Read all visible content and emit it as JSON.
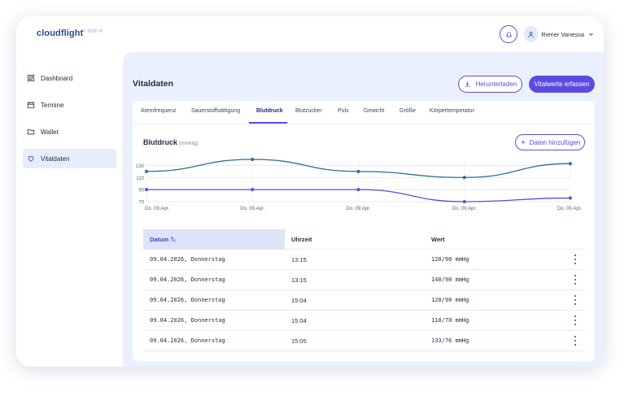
{
  "app": {
    "logo": "cloudflight",
    "logo_sub": "⚭ one-4",
    "user_name": "Riener Vanessa"
  },
  "sidebar": {
    "items": [
      {
        "label": "Dashboard",
        "icon": "dashboard-icon",
        "active": false
      },
      {
        "label": "Termine",
        "icon": "calendar-icon",
        "active": false
      },
      {
        "label": "Wallet",
        "icon": "folder-icon",
        "active": false
      },
      {
        "label": "Vitaldaten",
        "icon": "heart-icon",
        "active": true
      }
    ]
  },
  "page": {
    "title": "Vitaldaten",
    "download_label": "Herunterladen",
    "record_label": "Vitalwerte erfassen"
  },
  "tabs": [
    {
      "label": "Atemfrequenz",
      "active": false
    },
    {
      "label": "Sauerstoffsättigung",
      "active": false
    },
    {
      "label": "Blutdruck",
      "active": true
    },
    {
      "label": "Blutzucker",
      "active": false
    },
    {
      "label": "Puls",
      "active": false
    },
    {
      "label": "Gewicht",
      "active": false
    },
    {
      "label": "Größe",
      "active": false
    },
    {
      "label": "Körpertemperatur",
      "active": false
    }
  ],
  "chart_section": {
    "title": "Blutdruck",
    "unit": "(mmHg)",
    "add_label": "Daten hinzufügen"
  },
  "chart_data": {
    "type": "line",
    "x": [
      "Do. 09.Apr.",
      "Do. 09.Apr.",
      "Do. 09.Apr.",
      "Do. 09.Apr.",
      "Do. 09.Apr."
    ],
    "y_ticks": [
      70,
      90,
      110,
      130
    ],
    "ylim": [
      70,
      140
    ],
    "series": [
      {
        "values": [
          120,
          140,
          120,
          110,
          133
        ],
        "color": "#2f6e95"
      },
      {
        "values": [
          90,
          90,
          90,
          70,
          76
        ],
        "color": "#5b4ce0"
      }
    ]
  },
  "table": {
    "headers": {
      "date": "Datum",
      "time": "Uhrzeit",
      "value": "Wert"
    },
    "rows": [
      {
        "date": "09.04.2026, Donnerstag",
        "time": "13:15",
        "value": "120/90 mmHg"
      },
      {
        "date": "09.04.2026, Donnerstag",
        "time": "13:15",
        "value": "140/90 mmHg"
      },
      {
        "date": "09.04.2026, Donnerstag",
        "time": "15:04",
        "value": "120/90 mmHg"
      },
      {
        "date": "09.04.2026, Donnerstag",
        "time": "15:04",
        "value": "110/70 mmHg"
      },
      {
        "date": "09.04.2026, Donnerstag",
        "time": "15:05",
        "value": "133/76 mmHg"
      }
    ]
  }
}
